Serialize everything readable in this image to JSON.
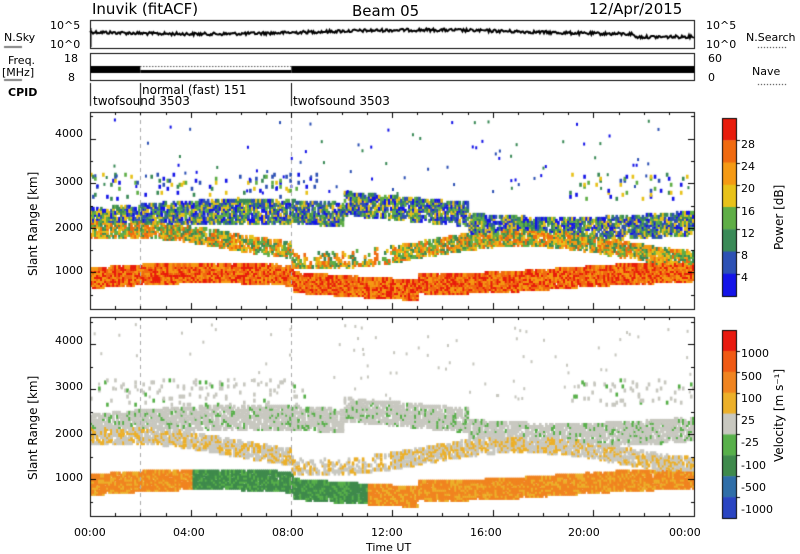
{
  "header": {
    "station": "Inuvik (fitACF)",
    "beam": "Beam 05",
    "date": "12/Apr/2015"
  },
  "left_labels": {
    "nsky": "N.Sky",
    "freq": "Freq.",
    "freq_unit": "[MHz]",
    "cpid": "CPID"
  },
  "right_labels": {
    "nsearch": "N.Search",
    "nave": "Nave"
  },
  "nsky_axis": {
    "top": "10^5",
    "bottom": "10^0"
  },
  "freq_axis": {
    "top": "18",
    "bottom": "8"
  },
  "nave_axis": {
    "top": "60",
    "bottom": "0"
  },
  "cpid_segments": [
    {
      "start_hour": 0.0,
      "end_hour": 2.0,
      "label": "twofsound 3503"
    },
    {
      "start_hour": 2.0,
      "end_hour": 8.0,
      "label": "normal (fast) 151"
    },
    {
      "start_hour": 8.0,
      "end_hour": 24.0,
      "label": "twofsound 3503"
    }
  ],
  "chart_data": [
    {
      "type": "heatmap",
      "name": "power",
      "ylabel": "Slant Range [km]",
      "xlabel": "",
      "x_range_hours": [
        0,
        24
      ],
      "ylim": [
        180,
        4600
      ],
      "yticks": [
        1000,
        2000,
        3000,
        4000
      ],
      "colorbar": {
        "label": "Power [dB]",
        "ticks": [
          "4",
          "8",
          "12",
          "16",
          "20",
          "24",
          "28"
        ],
        "range": [
          0,
          32
        ],
        "colors": [
          "#1414e8",
          "#2d51b4",
          "#3a8a57",
          "#5fae46",
          "#e8c21a",
          "#f59a14",
          "#f06a10",
          "#e81c0c"
        ]
      }
    },
    {
      "type": "heatmap",
      "name": "velocity",
      "ylabel": "Slant Range [km]",
      "xlabel": "Time UT",
      "x_range_hours": [
        0,
        24
      ],
      "xticks": [
        "00:00",
        "04:00",
        "08:00",
        "12:00",
        "16:00",
        "20:00",
        "00:00"
      ],
      "ylim": [
        180,
        4600
      ],
      "yticks": [
        1000,
        2000,
        3000,
        4000
      ],
      "colorbar": {
        "label": "Velocity [m s⁻¹]",
        "ticks": [
          "1000",
          "500",
          "100",
          "25",
          "-25",
          "-100",
          "-500",
          "-1000"
        ],
        "colors": [
          "#2a45c2",
          "#2f6ea8",
          "#3f8a4c",
          "#58b04a",
          "#c8c8c0",
          "#ecb02a",
          "#f08420",
          "#f05a14",
          "#e81a10"
        ]
      }
    }
  ]
}
